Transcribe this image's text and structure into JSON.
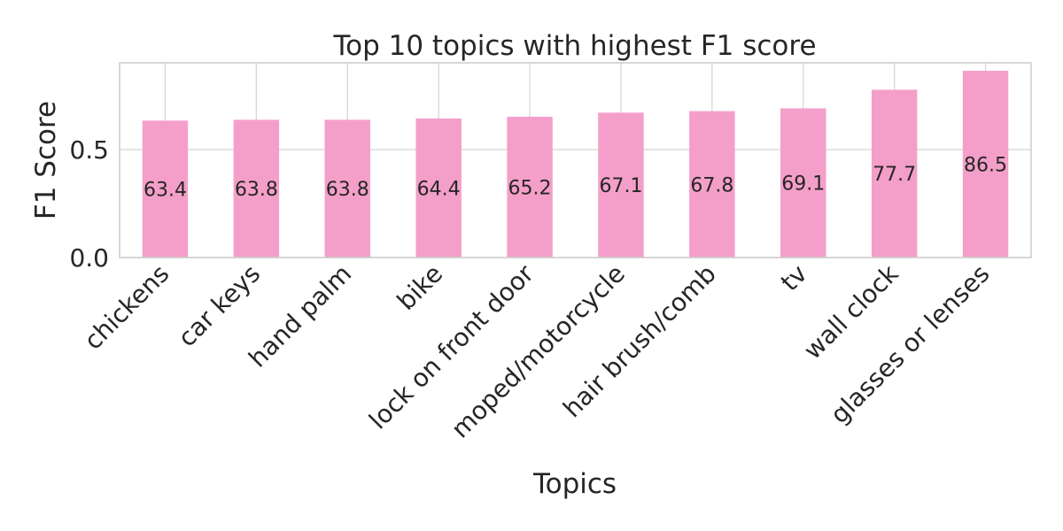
{
  "chart_data": {
    "type": "bar",
    "title": "Top 10 topics with highest F1 score",
    "xlabel": "Topics",
    "ylabel": "F1 Score",
    "categories": [
      "chickens",
      "car keys",
      "hand palm",
      "bike",
      "lock on front door",
      "moped/motorcycle",
      "hair brush/comb",
      "tv",
      "wall clock",
      "glasses or lenses"
    ],
    "values": [
      0.634,
      0.638,
      0.638,
      0.644,
      0.652,
      0.671,
      0.678,
      0.691,
      0.777,
      0.865
    ],
    "data_labels": [
      "63.4",
      "63.8",
      "63.8",
      "64.4",
      "65.2",
      "67.1",
      "67.8",
      "69.1",
      "77.7",
      "86.5"
    ],
    "yticks": [
      0.0,
      0.5
    ],
    "ytick_labels": [
      "0.0",
      "0.5"
    ],
    "ylim": [
      0,
      0.9
    ],
    "grid": true,
    "legend": "none",
    "bar_color": "#f49fc9"
  }
}
